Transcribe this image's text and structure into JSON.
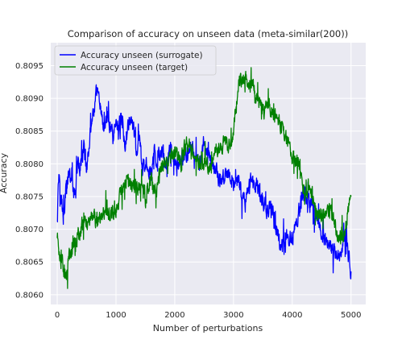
{
  "chart_data": {
    "type": "line",
    "title": "Comparison of accuracy on unseen data (meta-similar(200))",
    "xlabel": "Number of perturbations",
    "ylabel": "Accuracy",
    "xlim": [
      -110,
      5250
    ],
    "ylim": [
      0.80585,
      0.80985
    ],
    "xticks": [
      0,
      1000,
      2000,
      3000,
      4000,
      5000
    ],
    "xtick_labels": [
      "0",
      "1000",
      "2000",
      "3000",
      "4000",
      "5000"
    ],
    "yticks": [
      0.806,
      0.8065,
      0.807,
      0.8075,
      0.808,
      0.8085,
      0.809,
      0.8095
    ],
    "ytick_labels": [
      "0.8060",
      "0.8065",
      "0.8070",
      "0.8075",
      "0.8080",
      "0.8085",
      "0.8090",
      "0.8095"
    ],
    "grid": true,
    "legend_position": "top-left",
    "background": "#eaeaf2",
    "series": [
      {
        "name": "Accuracy unseen (surrogate)",
        "color": "#0000ff",
        "noise": 0.00025,
        "x": [
          0,
          30,
          60,
          100,
          150,
          200,
          250,
          300,
          350,
          400,
          450,
          500,
          550,
          600,
          650,
          700,
          750,
          800,
          850,
          900,
          950,
          1000,
          1050,
          1100,
          1150,
          1200,
          1250,
          1300,
          1350,
          1400,
          1450,
          1500,
          1550,
          1600,
          1650,
          1700,
          1750,
          1800,
          1850,
          1900,
          1950,
          2000,
          2100,
          2200,
          2300,
          2400,
          2500,
          2600,
          2700,
          2800,
          2900,
          3000,
          3100,
          3200,
          3300,
          3400,
          3500,
          3600,
          3700,
          3800,
          3900,
          4000,
          4100,
          4200,
          4300,
          4400,
          4500,
          4600,
          4700,
          4800,
          4900,
          4950,
          5000
        ],
        "y": [
          0.8073,
          0.8079,
          0.8076,
          0.8072,
          0.8076,
          0.8078,
          0.8077,
          0.8075,
          0.808,
          0.8079,
          0.8083,
          0.8079,
          0.8084,
          0.8086,
          0.809,
          0.8092,
          0.8088,
          0.8085,
          0.8087,
          0.8086,
          0.8084,
          0.8086,
          0.8085,
          0.8087,
          0.8083,
          0.8086,
          0.8087,
          0.8086,
          0.8082,
          0.8084,
          0.8079,
          0.808,
          0.808,
          0.8078,
          0.8082,
          0.808,
          0.8081,
          0.8082,
          0.8079,
          0.8082,
          0.8082,
          0.808,
          0.808,
          0.8082,
          0.8082,
          0.808,
          0.8082,
          0.8081,
          0.8079,
          0.8077,
          0.8079,
          0.8076,
          0.8077,
          0.8074,
          0.8078,
          0.8077,
          0.8074,
          0.8073,
          0.8072,
          0.8067,
          0.8069,
          0.8068,
          0.8072,
          0.8076,
          0.8074,
          0.8072,
          0.807,
          0.8068,
          0.8067,
          0.8066,
          0.8069,
          0.8066,
          0.8064
        ]
      },
      {
        "name": "Accuracy unseen (target)",
        "color": "#008000",
        "noise": 0.00025,
        "x": [
          0,
          50,
          100,
          150,
          200,
          300,
          400,
          500,
          600,
          700,
          800,
          900,
          1000,
          1100,
          1200,
          1300,
          1400,
          1500,
          1600,
          1700,
          1800,
          1900,
          2000,
          2100,
          2200,
          2300,
          2400,
          2500,
          2600,
          2700,
          2800,
          2900,
          3000,
          3050,
          3100,
          3200,
          3300,
          3400,
          3500,
          3600,
          3700,
          3800,
          3900,
          4000,
          4100,
          4200,
          4300,
          4400,
          4500,
          4600,
          4700,
          4800,
          4900,
          4950,
          5000
        ],
        "y": [
          0.8069,
          0.8066,
          0.8064,
          0.8062,
          0.8066,
          0.8068,
          0.807,
          0.8071,
          0.8072,
          0.8071,
          0.8073,
          0.8072,
          0.8073,
          0.8076,
          0.8078,
          0.8076,
          0.8077,
          0.8075,
          0.8078,
          0.8076,
          0.808,
          0.8081,
          0.8082,
          0.808,
          0.8083,
          0.8082,
          0.808,
          0.808,
          0.808,
          0.8082,
          0.8083,
          0.8083,
          0.8085,
          0.809,
          0.8092,
          0.8093,
          0.8092,
          0.809,
          0.8088,
          0.8089,
          0.8088,
          0.8086,
          0.8084,
          0.8081,
          0.808,
          0.8075,
          0.8077,
          0.8073,
          0.8072,
          0.8073,
          0.8072,
          0.8068,
          0.807,
          0.8073,
          0.8076
        ]
      }
    ]
  }
}
